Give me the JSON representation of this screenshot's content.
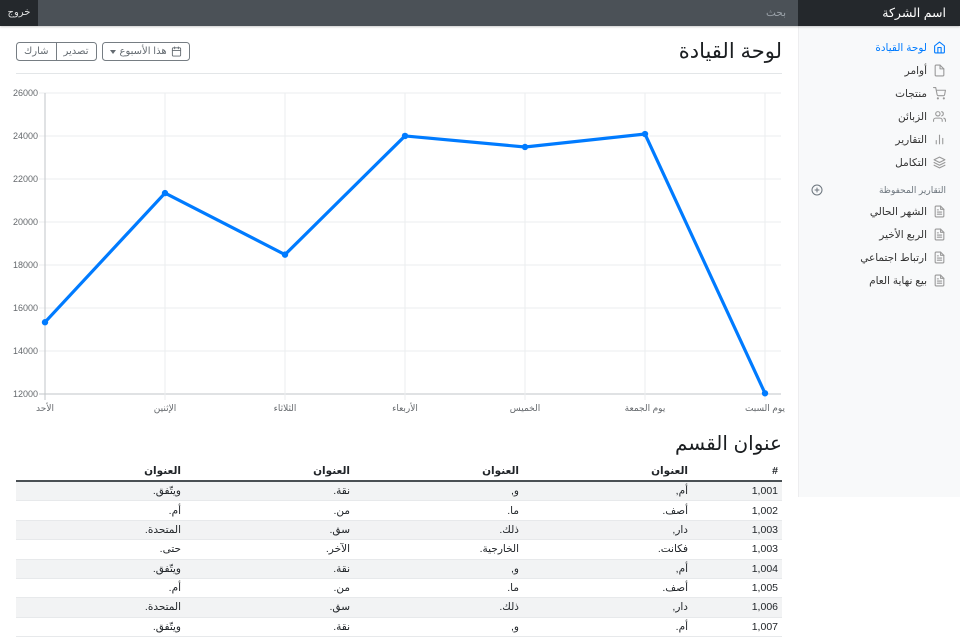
{
  "topbar": {
    "brand": "اسم الشركة",
    "search_placeholder": "بحث",
    "signout": "خروج"
  },
  "sidebar": {
    "items": [
      {
        "label": "لوحة القيادة",
        "icon": "home-icon",
        "active": true
      },
      {
        "label": "أوامر",
        "icon": "file-icon",
        "active": false
      },
      {
        "label": "منتجات",
        "icon": "shopping-cart-icon",
        "active": false
      },
      {
        "label": "الزبائن",
        "icon": "users-icon",
        "active": false
      },
      {
        "label": "التقارير",
        "icon": "bar-chart-icon",
        "active": false
      },
      {
        "label": "التكامل",
        "icon": "layers-icon",
        "active": false
      }
    ],
    "saved_header": "التقارير المحفوظة",
    "saved_header_icon": "plus-circle-icon",
    "saved_items": [
      {
        "label": "الشهر الحالي",
        "icon": "file-text-icon"
      },
      {
        "label": "الربع الأخير",
        "icon": "file-text-icon"
      },
      {
        "label": "ارتباط اجتماعي",
        "icon": "file-text-icon"
      },
      {
        "label": "بيع نهاية العام",
        "icon": "file-text-icon"
      }
    ]
  },
  "page": {
    "title": "لوحة القيادة",
    "toolbar": {
      "share": "شارك",
      "export": "تصدير",
      "week": "هذا الأسبوع",
      "week_icon": "calendar-icon"
    }
  },
  "chart_data": {
    "type": "line",
    "title": "",
    "xlabel": "",
    "ylabel": "",
    "categories": [
      "الأحد",
      "الإثنين",
      "الثلاثاء",
      "الأربعاء",
      "الخميس",
      "يوم الجمعة",
      "يوم السبت"
    ],
    "values": [
      15339,
      21345,
      18483,
      24003,
      23489,
      24092,
      12034
    ],
    "ylim": [
      12000,
      26000
    ],
    "ytick_step": 2000,
    "grid": true,
    "legend": "none",
    "line_color": "#007bff",
    "point_color": "#007bff"
  },
  "section": {
    "title": "عنوان القسم",
    "table": {
      "headers": [
        "#",
        "العنوان",
        "العنوان",
        "العنوان",
        "العنوان"
      ],
      "rows": [
        [
          "1,001",
          "أم,",
          "و,",
          "نقة.",
          "ويتّفق."
        ],
        [
          "1,002",
          "أصف.",
          "ما.",
          "من.",
          "أم."
        ],
        [
          "1,003",
          "دار,",
          "ذلك.",
          "سق.",
          "المتحدة."
        ],
        [
          "1,003",
          "فكانت.",
          "الخارجية.",
          "الآخر.",
          "حتى."
        ],
        [
          "1,004",
          "أم,",
          "و,",
          "نقة.",
          "ويتّفق."
        ],
        [
          "1,005",
          "أصف.",
          "ما.",
          "من.",
          "أم."
        ],
        [
          "1,006",
          "دار,",
          "ذلك.",
          "سق.",
          "المتحدة."
        ],
        [
          "1,007",
          "أم.",
          "و,",
          "نقة.",
          "ويتّفق."
        ]
      ]
    }
  }
}
